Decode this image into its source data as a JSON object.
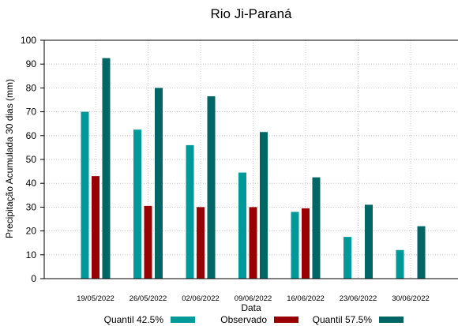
{
  "chart_data": {
    "type": "bar",
    "title": "Rio Ji-Paraná",
    "xlabel": "Data",
    "ylabel": "Precipitação Acumulada 30 dias (mm)",
    "ylim": [
      0,
      100
    ],
    "yticks": [
      0,
      10,
      20,
      30,
      40,
      50,
      60,
      70,
      80,
      90,
      100
    ],
    "grid": true,
    "legend_position": "bottom",
    "categories": [
      "19/05/2022",
      "26/05/2022",
      "02/06/2022",
      "09/06/2022",
      "16/06/2022",
      "23/06/2022",
      "30/06/2022"
    ],
    "series": [
      {
        "name": "Quantil 42.5%",
        "color": "#009999",
        "values": [
          70,
          62.5,
          56,
          44.5,
          28,
          17.5,
          12
        ]
      },
      {
        "name": "Observado",
        "color": "#990000",
        "values": [
          43,
          30.5,
          30,
          30,
          29.5,
          null,
          null
        ]
      },
      {
        "name": "Quantil 57.5%",
        "color": "#006666",
        "values": [
          92.5,
          80,
          76.5,
          61.5,
          42.5,
          31,
          22
        ]
      }
    ]
  }
}
